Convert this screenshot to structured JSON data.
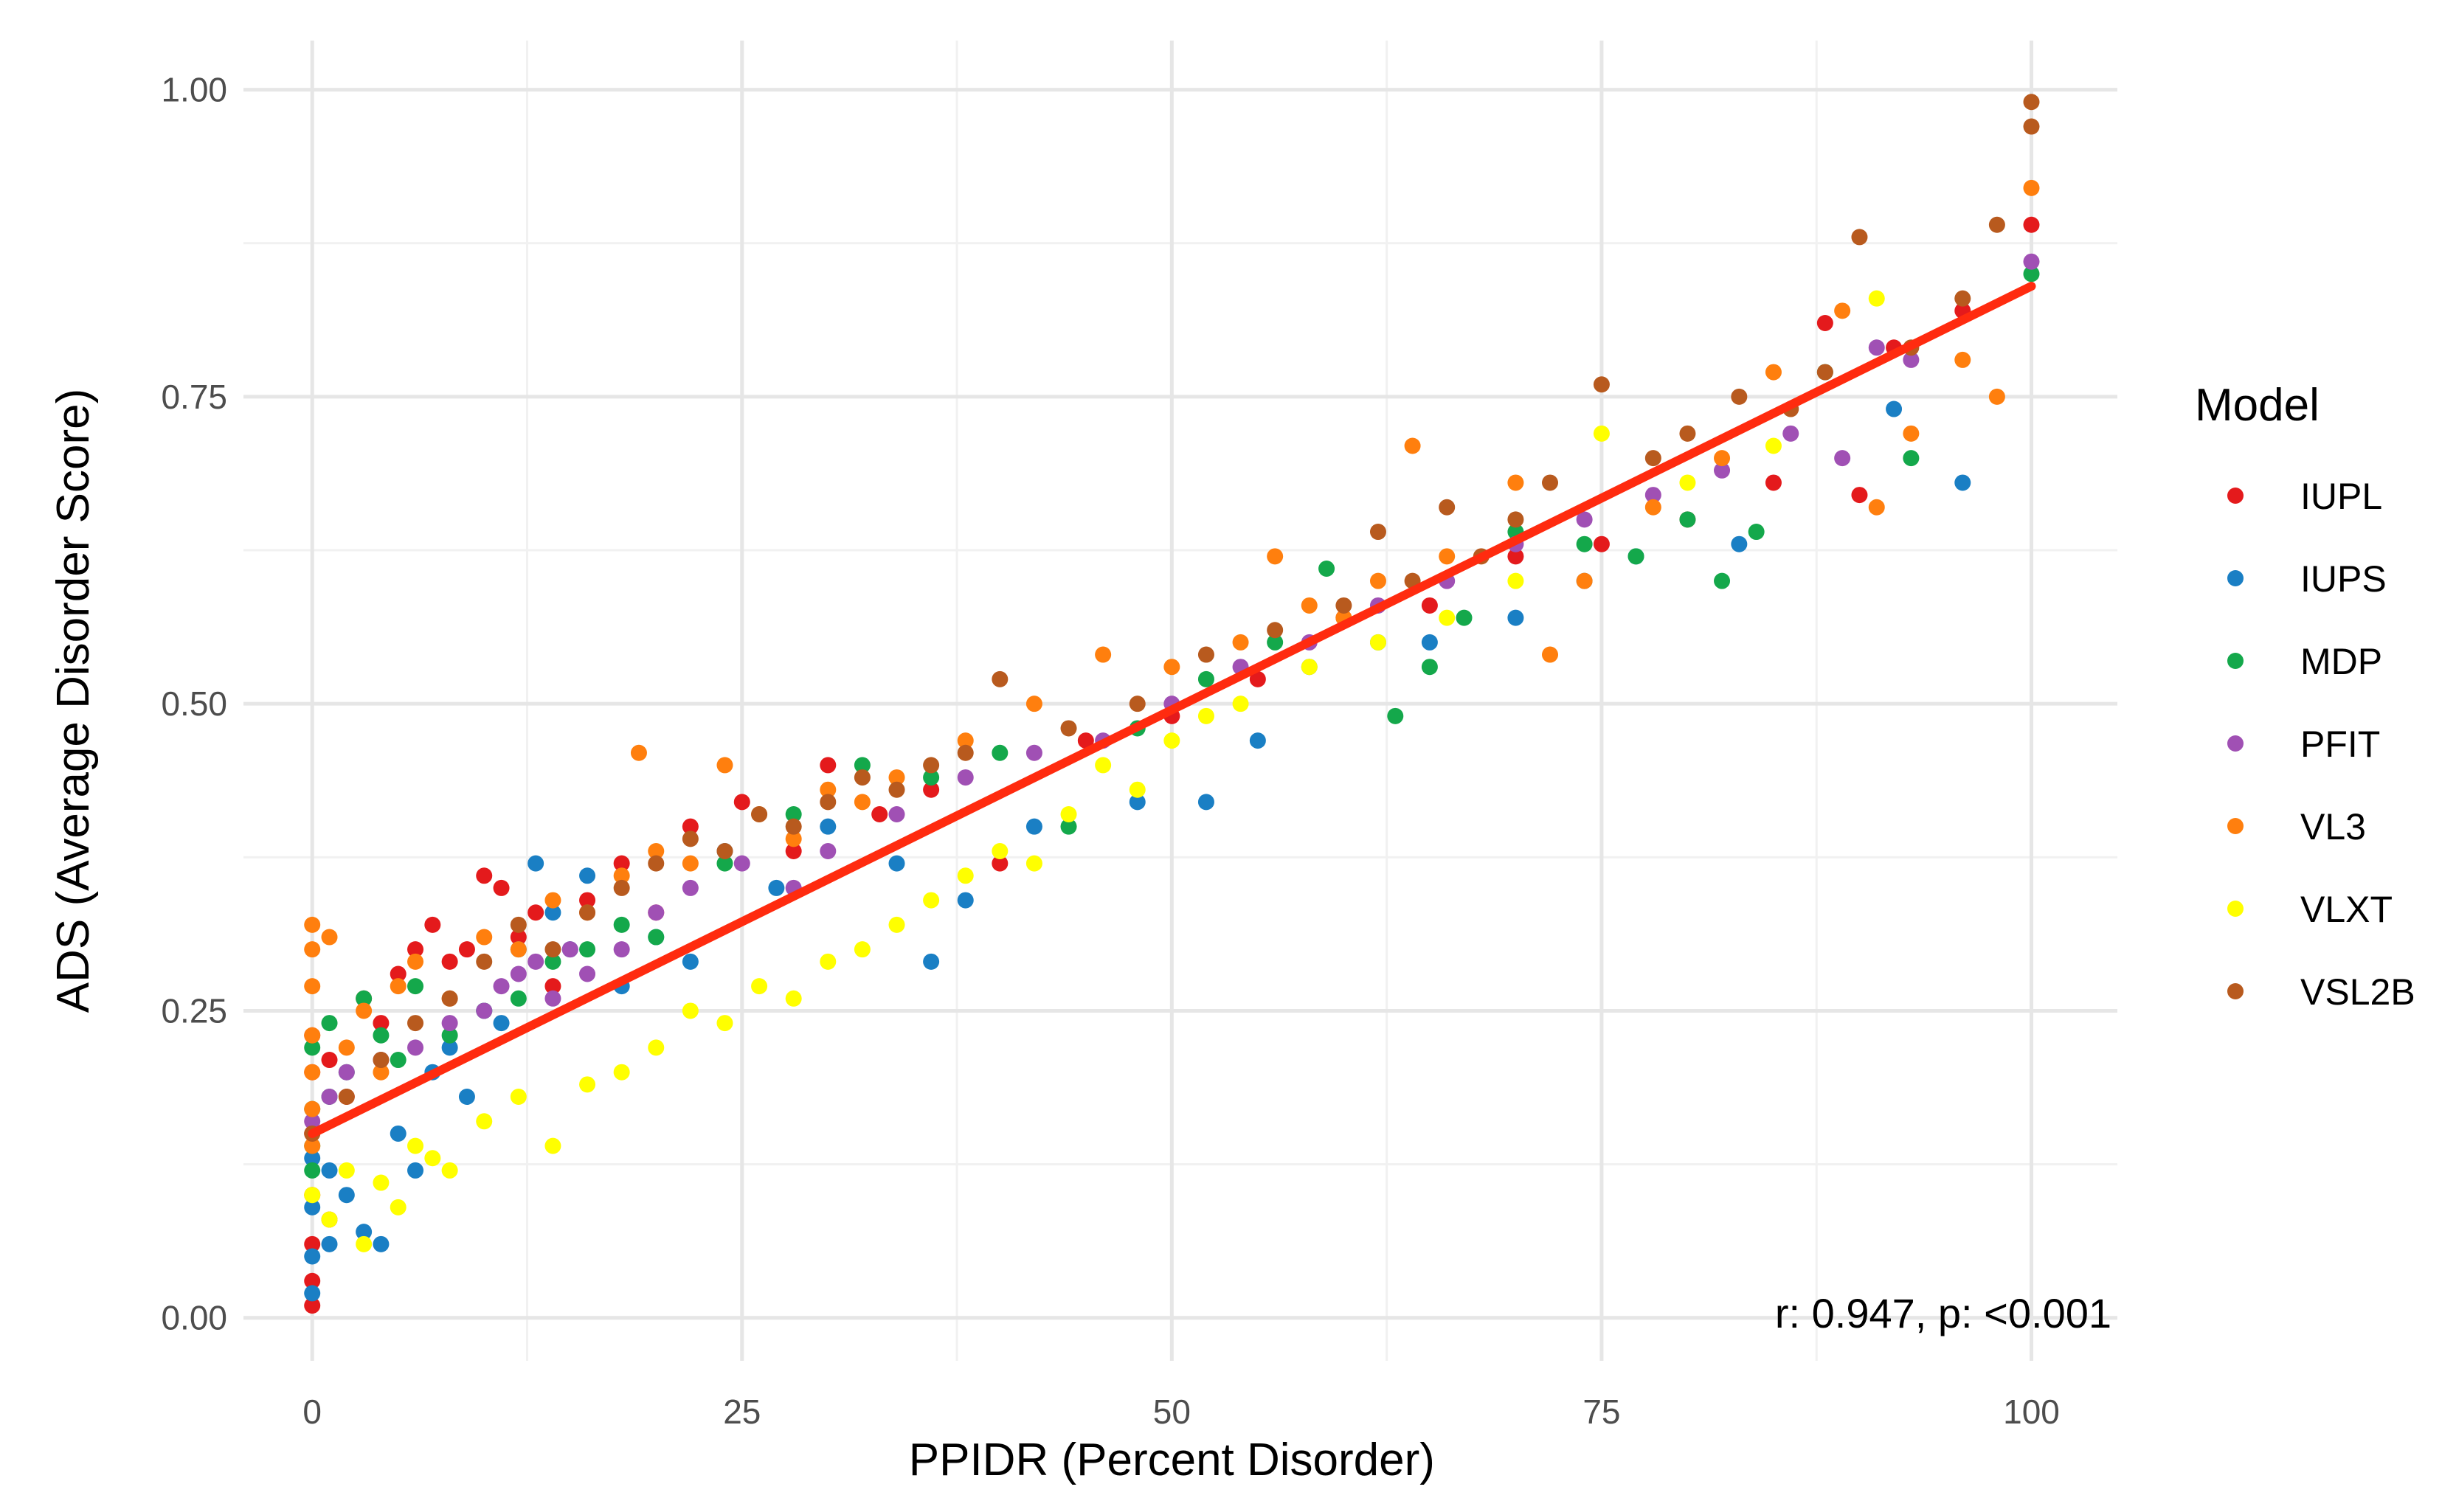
{
  "chart_data": {
    "type": "scatter",
    "xlabel": "PPIDR (Percent Disorder)",
    "ylabel": "ADS (Average Disorder Score)",
    "xlim": [
      -4,
      105
    ],
    "ylim": [
      -0.035,
      1.04
    ],
    "x_ticks": [
      0,
      25,
      50,
      75,
      100
    ],
    "x_tick_labels": [
      "0",
      "25",
      "50",
      "75",
      "100"
    ],
    "y_ticks": [
      0.0,
      0.25,
      0.5,
      0.75,
      1.0
    ],
    "y_tick_labels": [
      "0.00",
      "0.25",
      "0.50",
      "0.75",
      "1.00"
    ],
    "grid": true,
    "legend": {
      "title": "Model",
      "position": "right"
    },
    "annotation": "r: 0.947, p: <0.001",
    "fit_line": {
      "color": "#ff2b0f",
      "x": [
        0,
        100
      ],
      "y": [
        0.15,
        0.84
      ]
    },
    "series": [
      {
        "name": "IUPL",
        "color": "#e41a1c",
        "x": [
          0,
          0,
          0,
          0,
          0,
          0,
          0,
          1,
          1,
          2,
          3,
          4,
          5,
          6,
          7,
          8,
          9,
          10,
          11,
          12,
          13,
          14,
          16,
          18,
          20,
          22,
          25,
          28,
          30,
          33,
          36,
          40,
          45,
          50,
          55,
          60,
          65,
          70,
          75,
          80,
          85,
          88,
          90,
          92,
          96,
          100
        ],
        "y": [
          0.01,
          0.03,
          0.06,
          0.1,
          0.15,
          0.2,
          0.23,
          0.08,
          0.21,
          0.18,
          0.26,
          0.24,
          0.28,
          0.3,
          0.32,
          0.29,
          0.3,
          0.36,
          0.35,
          0.31,
          0.33,
          0.27,
          0.34,
          0.37,
          0.33,
          0.4,
          0.42,
          0.38,
          0.45,
          0.41,
          0.43,
          0.37,
          0.47,
          0.49,
          0.52,
          0.57,
          0.58,
          0.62,
          0.63,
          0.65,
          0.68,
          0.81,
          0.67,
          0.79,
          0.82,
          0.89
        ]
      },
      {
        "name": "IUPS",
        "color": "#1a7fc4",
        "x": [
          0,
          0,
          0,
          0,
          1,
          1,
          2,
          3,
          4,
          5,
          6,
          7,
          8,
          9,
          10,
          11,
          12,
          13,
          14,
          15,
          16,
          18,
          20,
          22,
          24,
          27,
          30,
          34,
          36,
          38,
          42,
          48,
          52,
          55,
          58,
          62,
          65,
          70,
          74,
          77,
          83,
          92,
          96
        ],
        "y": [
          0.02,
          0.05,
          0.09,
          0.13,
          0.06,
          0.12,
          0.1,
          0.07,
          0.06,
          0.15,
          0.12,
          0.2,
          0.22,
          0.18,
          0.25,
          0.24,
          0.3,
          0.37,
          0.33,
          0.3,
          0.36,
          0.27,
          0.31,
          0.29,
          0.38,
          0.35,
          0.4,
          0.37,
          0.29,
          0.34,
          0.4,
          0.42,
          0.42,
          0.47,
          0.53,
          0.55,
          0.55,
          0.57,
          0.6,
          0.62,
          0.63,
          0.74,
          0.68
        ]
      },
      {
        "name": "MDP",
        "color": "#14a84b",
        "x": [
          0,
          0,
          0,
          0,
          1,
          1,
          2,
          3,
          4,
          5,
          6,
          8,
          10,
          12,
          14,
          16,
          18,
          20,
          24,
          28,
          32,
          36,
          40,
          44,
          48,
          52,
          56,
          59,
          63,
          65,
          67,
          70,
          74,
          77,
          80,
          82,
          84,
          88,
          93,
          100
        ],
        "y": [
          0.12,
          0.14,
          0.17,
          0.22,
          0.24,
          0.18,
          0.2,
          0.26,
          0.23,
          0.21,
          0.27,
          0.23,
          0.25,
          0.26,
          0.29,
          0.3,
          0.32,
          0.31,
          0.37,
          0.41,
          0.45,
          0.44,
          0.46,
          0.4,
          0.48,
          0.52,
          0.55,
          0.61,
          0.49,
          0.53,
          0.57,
          0.64,
          0.63,
          0.62,
          0.65,
          0.6,
          0.64,
          0.77,
          0.7,
          0.85
        ]
      },
      {
        "name": "PFIT",
        "color": "#a050b4",
        "x": [
          0,
          1,
          2,
          4,
          6,
          8,
          10,
          11,
          12,
          13,
          14,
          15,
          16,
          18,
          20,
          22,
          25,
          28,
          30,
          34,
          38,
          42,
          46,
          50,
          54,
          58,
          62,
          66,
          70,
          74,
          78,
          82,
          86,
          89,
          91,
          93,
          100
        ],
        "y": [
          0.16,
          0.18,
          0.2,
          0.21,
          0.22,
          0.24,
          0.25,
          0.27,
          0.28,
          0.29,
          0.26,
          0.3,
          0.28,
          0.3,
          0.33,
          0.35,
          0.37,
          0.35,
          0.38,
          0.41,
          0.44,
          0.46,
          0.47,
          0.5,
          0.53,
          0.55,
          0.58,
          0.6,
          0.63,
          0.65,
          0.67,
          0.69,
          0.72,
          0.7,
          0.79,
          0.78,
          0.86
        ]
      },
      {
        "name": "VL3",
        "color": "#ff7f0e",
        "x": [
          0,
          0,
          0,
          0,
          0,
          0,
          0,
          1,
          2,
          3,
          4,
          5,
          6,
          8,
          10,
          12,
          14,
          16,
          18,
          19,
          20,
          22,
          24,
          26,
          28,
          30,
          32,
          34,
          38,
          42,
          46,
          50,
          54,
          56,
          58,
          60,
          62,
          64,
          66,
          70,
          72,
          74,
          78,
          82,
          85,
          89,
          91,
          93,
          96,
          98,
          100
        ],
        "y": [
          0.14,
          0.17,
          0.2,
          0.23,
          0.27,
          0.3,
          0.32,
          0.31,
          0.22,
          0.25,
          0.2,
          0.27,
          0.29,
          0.26,
          0.31,
          0.3,
          0.34,
          0.33,
          0.36,
          0.46,
          0.38,
          0.37,
          0.45,
          0.41,
          0.39,
          0.43,
          0.42,
          0.44,
          0.47,
          0.5,
          0.54,
          0.53,
          0.55,
          0.62,
          0.58,
          0.57,
          0.6,
          0.71,
          0.62,
          0.68,
          0.54,
          0.6,
          0.66,
          0.7,
          0.77,
          0.82,
          0.66,
          0.72,
          0.78,
          0.75,
          0.92
        ]
      },
      {
        "name": "VLXT",
        "color": "#ffff00",
        "x": [
          0,
          1,
          2,
          3,
          4,
          5,
          6,
          7,
          8,
          10,
          12,
          14,
          16,
          18,
          20,
          22,
          24,
          26,
          28,
          30,
          32,
          34,
          36,
          38,
          40,
          42,
          44,
          46,
          48,
          50,
          52,
          54,
          58,
          62,
          66,
          70,
          75,
          80,
          85,
          91
        ],
        "y": [
          0.1,
          0.08,
          0.12,
          0.06,
          0.11,
          0.09,
          0.14,
          0.13,
          0.12,
          0.16,
          0.18,
          0.14,
          0.19,
          0.2,
          0.22,
          0.25,
          0.24,
          0.27,
          0.26,
          0.29,
          0.3,
          0.32,
          0.34,
          0.36,
          0.38,
          0.37,
          0.41,
          0.45,
          0.43,
          0.47,
          0.49,
          0.5,
          0.53,
          0.55,
          0.57,
          0.6,
          0.72,
          0.68,
          0.71,
          0.83
        ]
      },
      {
        "name": "VSL2B",
        "color": "#b85a1e",
        "x": [
          0,
          2,
          4,
          6,
          8,
          10,
          12,
          14,
          16,
          18,
          20,
          22,
          24,
          26,
          28,
          30,
          32,
          34,
          36,
          38,
          40,
          44,
          48,
          52,
          56,
          60,
          62,
          64,
          66,
          68,
          70,
          72,
          75,
          78,
          80,
          83,
          86,
          88,
          90,
          93,
          96,
          98,
          100,
          100
        ],
        "y": [
          0.15,
          0.18,
          0.21,
          0.24,
          0.26,
          0.29,
          0.32,
          0.3,
          0.33,
          0.35,
          0.37,
          0.39,
          0.38,
          0.41,
          0.4,
          0.42,
          0.44,
          0.43,
          0.45,
          0.46,
          0.52,
          0.48,
          0.5,
          0.54,
          0.56,
          0.58,
          0.64,
          0.6,
          0.66,
          0.62,
          0.65,
          0.68,
          0.76,
          0.7,
          0.72,
          0.75,
          0.74,
          0.77,
          0.88,
          0.79,
          0.83,
          0.89,
          0.97,
          0.99
        ]
      }
    ]
  }
}
